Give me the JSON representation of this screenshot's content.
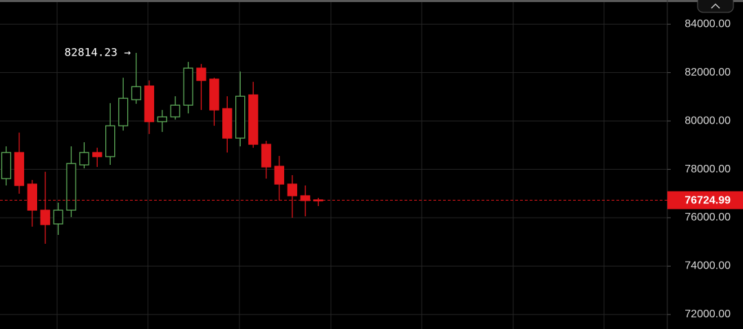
{
  "chart_data": {
    "type": "candlestick",
    "open": [
      77617,
      78695,
      77390,
      76312,
      75744,
      76312,
      78184,
      78695,
      78525,
      79801,
      80879,
      81446,
      79971,
      80170,
      80652,
      82184,
      81730,
      80510,
      79290,
      81078,
      79035,
      78127,
      77390,
      76908,
      76738
    ],
    "high": [
      78950,
      79518,
      77560,
      77900,
      76624,
      78950,
      79120,
      78893,
      80737,
      81787,
      82814.23,
      81674,
      80454,
      81021,
      82440,
      82355,
      81787,
      81021,
      82043,
      81617,
      79177,
      78553,
      77759,
      77333,
      76822
    ],
    "low": [
      77333,
      76993,
      75631,
      74922,
      75290,
      76028,
      78042,
      78099,
      78184,
      79602,
      80709,
      79461,
      79546,
      80057,
      80312,
      80454,
      79801,
      78695,
      78950,
      78893,
      77617,
      76709,
      76000,
      76057,
      76482
    ],
    "close": [
      78695,
      77333,
      76312,
      75716,
      76312,
      78241,
      78695,
      78525,
      79801,
      80936,
      81418,
      79971,
      80170,
      80652,
      82184,
      81674,
      80454,
      79290,
      81021,
      79035,
      78099,
      77390,
      76908,
      76709,
      76724.99
    ],
    "up_color": "#5fae5a",
    "down_color": "#e3161b",
    "ylim": [
      71400,
      85000
    ],
    "yticks": [
      {
        "value": 72000,
        "label": "72000.00"
      },
      {
        "value": 74000,
        "label": "74000.00"
      },
      {
        "value": 76000,
        "label": "76000.00"
      },
      {
        "value": 78000,
        "label": "78000.00"
      },
      {
        "value": 80000,
        "label": "80000.00"
      },
      {
        "value": 82000,
        "label": "82000.00"
      },
      {
        "value": 84000,
        "label": "84000.00"
      }
    ],
    "grid": true,
    "annotation": "82814.23 →"
  }
}
